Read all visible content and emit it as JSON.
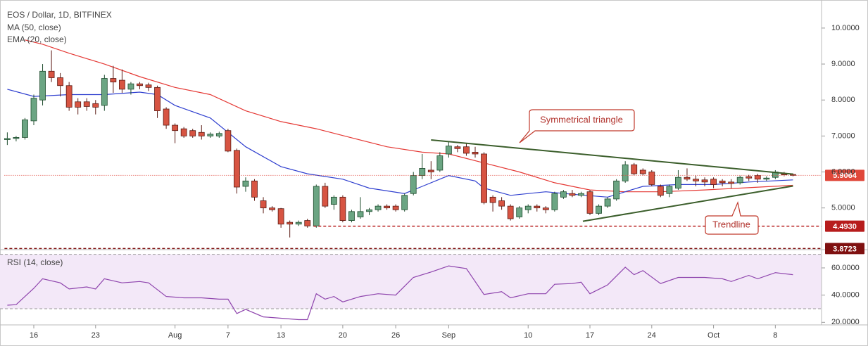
{
  "chart_data": [
    {
      "type": "candlestick",
      "title": "EOS / Dollar, 1D, BITFINEX",
      "categories": [
        null,
        null,
        null,
        "16",
        null,
        null,
        null,
        null,
        null,
        null,
        "23",
        null,
        null,
        null,
        null,
        null,
        null,
        null,
        null,
        "Aug",
        null,
        null,
        null,
        null,
        null,
        "7",
        null,
        null,
        null,
        null,
        null,
        "13",
        null,
        null,
        null,
        null,
        null,
        null,
        "20",
        null,
        null,
        null,
        null,
        null,
        "26",
        null,
        null,
        null,
        null,
        null,
        "Sep",
        null,
        null,
        null,
        null,
        null,
        null,
        null,
        null,
        "10",
        null,
        null,
        null,
        null,
        null,
        null,
        "17",
        null,
        null,
        null,
        null,
        null,
        null,
        "24",
        null,
        null,
        null,
        null,
        null,
        null,
        "Oct",
        null,
        null,
        null,
        null,
        null,
        null,
        "8",
        null,
        null
      ],
      "open": [
        6.9,
        6.93,
        6.96,
        7.42,
        8.0,
        8.8,
        8.62,
        8.4,
        7.95,
        7.95,
        7.9,
        7.85,
        8.6,
        8.55,
        8.3,
        8.45,
        8.42,
        8.35,
        7.75,
        7.3,
        7.2,
        7.15,
        7.1,
        7.0,
        7.0,
        7.15,
        6.6,
        5.6,
        5.75,
        5.2,
        5.0,
        4.98,
        4.6,
        4.55,
        4.65,
        4.5,
        5.6,
        5.1,
        5.3,
        4.65,
        4.75,
        4.9,
        4.95,
        5.05,
        5.05,
        4.95,
        5.4,
        5.9,
        6.05,
        6.05,
        6.5,
        6.7,
        6.7,
        6.55,
        6.5,
        5.3,
        5.2,
        5.05,
        4.75,
        4.95,
        5.05,
        5.0,
        4.95,
        5.3,
        5.4,
        5.35,
        5.45,
        4.85,
        5.05,
        5.25,
        5.75,
        6.2,
        6.05,
        6.0,
        5.6,
        5.4,
        5.55,
        5.85,
        5.8,
        5.78,
        5.8,
        5.75,
        5.72,
        5.7,
        5.87,
        5.9,
        5.8,
        5.85,
        5.95,
        5.93
      ],
      "high": [
        7.1,
        7.0,
        7.5,
        8.15,
        9.0,
        9.38,
        8.75,
        8.5,
        8.05,
        8.05,
        8.0,
        8.7,
        8.95,
        8.85,
        8.5,
        8.5,
        8.48,
        8.4,
        7.8,
        7.35,
        7.25,
        7.2,
        7.3,
        7.1,
        7.12,
        7.2,
        6.65,
        5.85,
        5.8,
        5.3,
        5.05,
        5.0,
        4.65,
        4.65,
        4.7,
        5.65,
        5.7,
        5.35,
        5.35,
        4.95,
        5.3,
        5.0,
        5.1,
        5.1,
        5.1,
        5.4,
        6.0,
        6.5,
        6.3,
        6.55,
        6.85,
        6.75,
        6.8,
        6.7,
        6.55,
        5.35,
        5.3,
        5.1,
        5.05,
        5.1,
        5.1,
        5.05,
        5.45,
        5.5,
        5.5,
        5.45,
        5.5,
        5.1,
        5.3,
        5.8,
        6.3,
        6.25,
        6.1,
        6.05,
        5.65,
        5.65,
        6.05,
        6.1,
        5.9,
        5.85,
        5.85,
        5.8,
        5.8,
        5.9,
        5.92,
        5.95,
        5.88,
        6.05,
        6.0,
        5.96
      ],
      "low": [
        6.75,
        6.85,
        6.9,
        7.3,
        7.85,
        8.5,
        8.1,
        7.7,
        7.6,
        7.7,
        7.6,
        7.7,
        8.2,
        8.2,
        8.15,
        8.3,
        8.25,
        7.5,
        7.2,
        6.8,
        6.95,
        6.95,
        6.9,
        6.95,
        6.95,
        6.55,
        5.4,
        5.45,
        5.2,
        4.85,
        4.9,
        4.45,
        4.18,
        4.5,
        4.45,
        4.45,
        5.0,
        4.95,
        4.6,
        4.6,
        4.7,
        4.8,
        4.9,
        4.95,
        4.9,
        4.9,
        5.35,
        5.8,
        5.8,
        6.0,
        6.4,
        6.55,
        6.45,
        6.4,
        5.1,
        4.9,
        4.95,
        4.65,
        4.7,
        4.85,
        4.9,
        4.85,
        4.9,
        5.25,
        5.3,
        5.3,
        4.8,
        4.8,
        5.0,
        5.2,
        5.7,
        5.9,
        5.9,
        5.6,
        5.3,
        5.3,
        5.5,
        5.75,
        5.6,
        5.6,
        5.55,
        5.6,
        5.55,
        5.65,
        5.75,
        5.7,
        5.75,
        5.8,
        5.88,
        5.88
      ],
      "close": [
        6.93,
        6.96,
        7.45,
        8.05,
        8.8,
        8.62,
        8.4,
        7.8,
        7.8,
        7.82,
        7.8,
        8.6,
        8.5,
        8.3,
        8.45,
        8.4,
        8.35,
        7.7,
        7.3,
        7.15,
        7.0,
        7.0,
        7.0,
        7.05,
        7.07,
        6.58,
        5.58,
        5.75,
        5.3,
        5.0,
        4.95,
        4.55,
        4.55,
        4.6,
        4.5,
        5.6,
        5.05,
        5.3,
        4.65,
        4.9,
        4.9,
        4.95,
        5.05,
        5.0,
        4.95,
        5.35,
        5.9,
        6.1,
        6.0,
        6.45,
        6.72,
        6.65,
        6.52,
        6.5,
        5.15,
        5.15,
        5.05,
        4.7,
        5.0,
        5.05,
        5.0,
        4.95,
        5.4,
        5.45,
        5.35,
        5.4,
        4.85,
        5.05,
        5.25,
        5.75,
        6.2,
        5.95,
        5.95,
        5.65,
        5.35,
        5.6,
        5.85,
        5.8,
        5.75,
        5.72,
        5.65,
        5.7,
        5.68,
        5.85,
        5.83,
        5.8,
        5.83,
        6.0,
        5.92,
        5.9064
      ],
      "up_color": "#6ba583",
      "down_color": "#d75442",
      "ylim": [
        3.86,
        10.78
      ],
      "yticks": [
        {
          "value": 5,
          "label": "5.0000"
        },
        {
          "value": 6,
          "label": "6.0000"
        },
        {
          "value": 7,
          "label": "7.0000"
        },
        {
          "value": 8,
          "label": "8.0000"
        },
        {
          "value": 9,
          "label": "9.0000"
        },
        {
          "value": 10,
          "label": "10.0000"
        }
      ],
      "lines": [
        {
          "name": "MA (50, close)",
          "color": "#e53935",
          "x": [
            2,
            4,
            7,
            11,
            15,
            19,
            23,
            27,
            31,
            35,
            39,
            43,
            47,
            50,
            54,
            58,
            62,
            66,
            70,
            74,
            79,
            83,
            89
          ],
          "values": [
            9.67,
            9.55,
            9.3,
            9.0,
            8.65,
            8.35,
            8.15,
            7.7,
            7.4,
            7.2,
            6.95,
            6.7,
            6.55,
            6.5,
            6.25,
            6.0,
            5.7,
            5.5,
            5.45,
            5.45,
            5.5,
            5.55,
            5.63
          ]
        },
        {
          "name": "EMA (20, close)",
          "color": "#2f3fcf",
          "x": [
            0,
            3,
            7,
            11,
            15,
            17,
            19,
            23,
            27,
            31,
            34,
            38,
            41,
            45,
            47,
            50,
            53,
            54,
            57,
            61,
            64,
            68,
            72,
            76,
            80,
            84,
            89
          ],
          "values": [
            8.3,
            8.1,
            8.15,
            8.15,
            8.22,
            8.15,
            7.85,
            7.5,
            6.7,
            6.15,
            5.95,
            5.8,
            5.55,
            5.4,
            5.6,
            5.9,
            5.75,
            5.55,
            5.35,
            5.45,
            5.38,
            5.3,
            5.6,
            5.65,
            5.65,
            5.72,
            5.78
          ]
        }
      ],
      "trendlines": [
        {
          "color": "#3b5e2b",
          "x": [
            48,
            89
          ],
          "values": [
            6.89,
            5.94
          ]
        },
        {
          "color": "#3b5e2b",
          "x": [
            65.2,
            89
          ],
          "values": [
            4.63,
            5.61
          ]
        }
      ],
      "levels": [
        {
          "value": 5.9064,
          "label": "5.9064",
          "color": "#e0473a",
          "from": 0
        },
        {
          "value": 4.493,
          "label": "4.4930",
          "color": "#b71c1c",
          "from": 35
        },
        {
          "value": 3.8723,
          "label": "3.8723",
          "color": "#7f1010",
          "from": 0
        }
      ],
      "annotations": [
        "Symmetrical triangle",
        "Trendline"
      ]
    },
    {
      "type": "line",
      "title": "RSI (14, close)",
      "series": [
        {
          "name": "RSI",
          "color": "#8e44ad",
          "x": [
            0,
            1,
            3,
            4,
            6,
            7,
            9,
            10,
            11,
            13,
            15,
            16,
            18,
            20,
            22,
            24,
            25,
            26,
            27,
            29,
            31,
            33,
            34,
            35,
            36,
            37,
            38,
            40,
            42,
            44,
            46,
            48,
            50,
            52,
            54,
            56,
            57,
            59,
            61,
            62,
            64,
            65,
            66,
            68,
            70,
            71,
            72,
            74,
            76,
            79,
            81,
            82,
            84,
            85,
            87,
            89
          ],
          "values": [
            32.6,
            33,
            45,
            52,
            49,
            44.5,
            46,
            44.5,
            52,
            49,
            50,
            49,
            39,
            38,
            38,
            37,
            37,
            26.5,
            29.5,
            24,
            23,
            22,
            22,
            41,
            37,
            39,
            35,
            39,
            41,
            40,
            53,
            57,
            61.5,
            59.5,
            40.5,
            42.5,
            38,
            41,
            41,
            48,
            48.5,
            49.5,
            41,
            47.5,
            60.5,
            55,
            58,
            48.5,
            53,
            53,
            52,
            50,
            54.5,
            52,
            56.5,
            55
          ]
        }
      ],
      "bands": [
        30,
        70
      ],
      "band_color": "#f3e8f8",
      "ylim": [
        18.1,
        72.9
      ],
      "yticks": [
        {
          "value": 20,
          "label": "20.0000"
        },
        {
          "value": 40,
          "label": "40.0000"
        },
        {
          "value": 60,
          "label": "60.0000"
        }
      ]
    }
  ]
}
